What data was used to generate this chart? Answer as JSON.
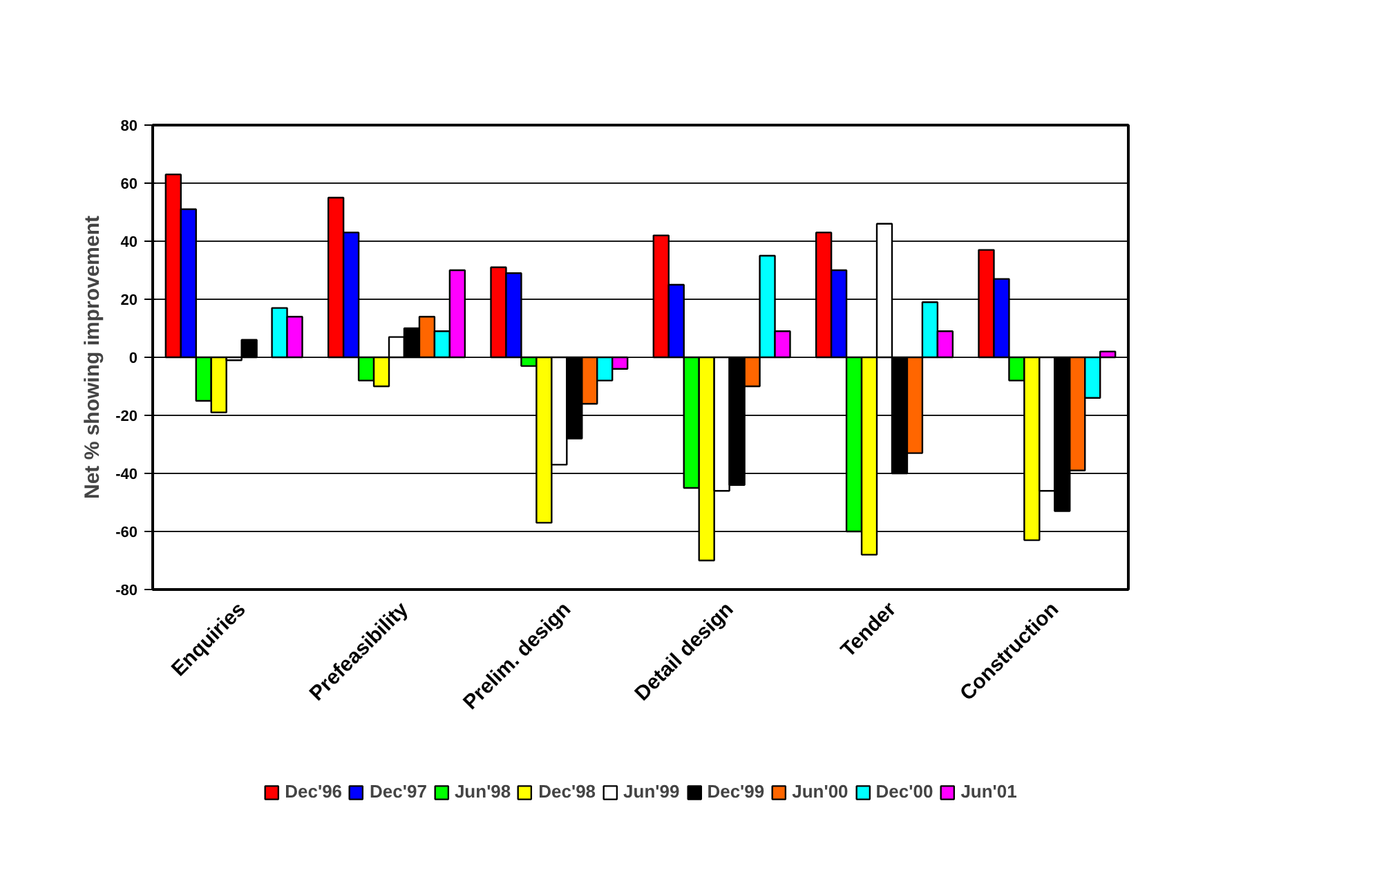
{
  "chart_data": {
    "type": "bar",
    "ylabel": "Net % showing improvement",
    "categories": [
      "Enquiries",
      "Prefeasibility",
      "Prelim. design",
      "Detail design",
      "Tender",
      "Construction"
    ],
    "series": [
      {
        "name": "Dec'96",
        "color": "#ff0000",
        "values": [
          63,
          55,
          31,
          42,
          43,
          37
        ]
      },
      {
        "name": "Dec'97",
        "color": "#0000ff",
        "values": [
          51,
          43,
          29,
          25,
          30,
          27
        ]
      },
      {
        "name": "Jun'98",
        "color": "#00ff00",
        "values": [
          -15,
          -8,
          -3,
          -45,
          -60,
          -8
        ]
      },
      {
        "name": "Dec'98",
        "color": "#ffff00",
        "values": [
          -19,
          -10,
          -57,
          -70,
          -68,
          -63
        ]
      },
      {
        "name": "Jun'99",
        "color": "#ffffff",
        "values": [
          -1,
          7,
          -37,
          -46,
          46,
          -46
        ]
      },
      {
        "name": "Dec'99",
        "color": "#000000",
        "values": [
          6,
          10,
          -28,
          -44,
          -40,
          -53
        ]
      },
      {
        "name": "Jun'00",
        "color": "#ff6600",
        "values": [
          null,
          14,
          -16,
          -10,
          -33,
          -39
        ]
      },
      {
        "name": "Dec'00",
        "color": "#00ffff",
        "values": [
          17,
          9,
          -8,
          35,
          19,
          -14
        ]
      },
      {
        "name": "Jun'01",
        "color": "#ff00ff",
        "values": [
          14,
          30,
          -4,
          9,
          9,
          2
        ]
      }
    ],
    "ylim": [
      -80,
      80
    ],
    "yticks": [
      -80,
      -60,
      -40,
      -20,
      0,
      20,
      40,
      60,
      80
    ],
    "grid": "y",
    "legend": "bottom"
  }
}
